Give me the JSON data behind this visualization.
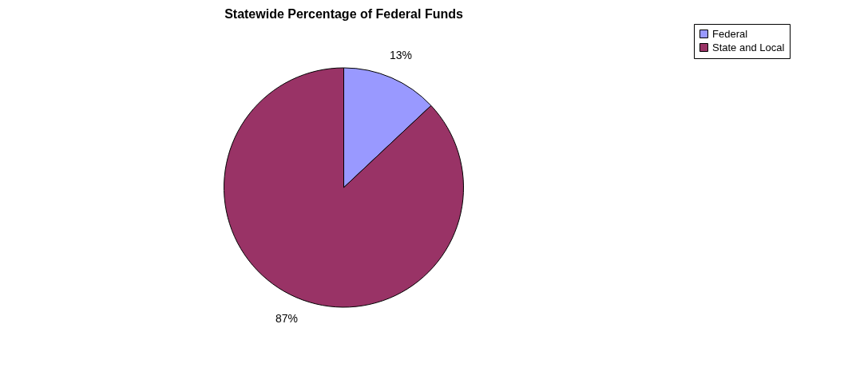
{
  "chart_data": {
    "type": "pie",
    "title": "Statewide Percentage of Federal Funds",
    "categories": [
      "Federal",
      "State and Local"
    ],
    "values": [
      13,
      87
    ],
    "colors": [
      "#9999ff",
      "#993366"
    ],
    "value_labels": [
      "13%",
      "87%"
    ],
    "legend": "right"
  }
}
